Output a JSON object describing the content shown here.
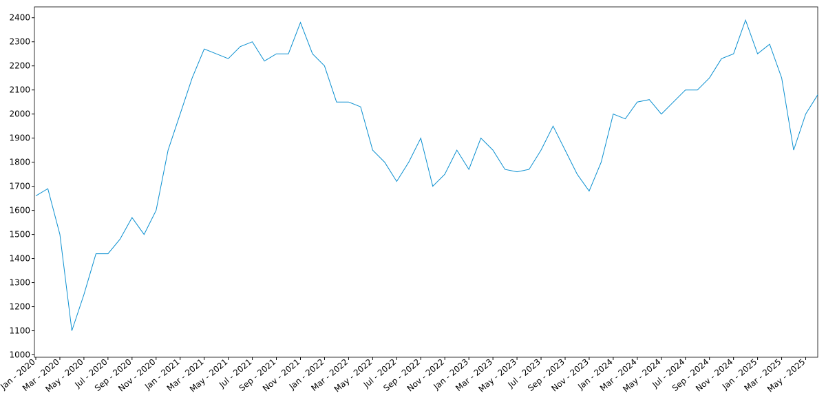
{
  "chart_data": {
    "type": "line",
    "categories": [
      "Jan - 2020",
      null,
      "Mar - 2020",
      null,
      "May - 2020",
      null,
      "Jul - 2020",
      null,
      "Sep - 2020",
      null,
      "Nov - 2020",
      null,
      "Jan - 2021",
      null,
      "Mar - 2021",
      null,
      "May - 2021",
      null,
      "Jul - 2021",
      null,
      "Sep - 2021",
      null,
      "Nov - 2021",
      null,
      "Jan - 2022",
      null,
      "Mar - 2022",
      null,
      "May - 2022",
      null,
      "Jul - 2022",
      null,
      "Sep - 2022",
      null,
      "Nov - 2022",
      null,
      "Jan - 2023",
      null,
      "Mar - 2023",
      null,
      "May - 2023",
      null,
      "Jul - 2023",
      null,
      "Sep - 2023",
      null,
      "Nov - 2023",
      null,
      "Jan - 2024",
      null,
      "Mar - 2024",
      null,
      "May - 2024",
      null,
      "Jul - 2024",
      null,
      "Sep - 2024",
      null,
      "Nov - 2024",
      null,
      "Jan - 2025",
      null,
      "Mar - 2025",
      null,
      "May - 2025",
      null
    ],
    "values": [
      1660,
      1690,
      1500,
      1100,
      1250,
      1420,
      1420,
      1480,
      1570,
      1500,
      1600,
      1850,
      2000,
      2150,
      2270,
      2250,
      2230,
      2280,
      2300,
      2220,
      2250,
      2250,
      2380,
      2250,
      2200,
      2050,
      2050,
      2030,
      1850,
      1800,
      1720,
      1800,
      1900,
      1700,
      1750,
      1850,
      1770,
      1900,
      1850,
      1770,
      1760,
      1770,
      1850,
      1950,
      1850,
      1750,
      1680,
      1800,
      2000,
      1980,
      2050,
      2060,
      2000,
      2050,
      2100,
      2100,
      2150,
      2230,
      2250,
      2390,
      2250,
      2290,
      2150,
      1850,
      2000,
      2080
    ],
    "color": "#0a8fd0",
    "ylim": [
      990,
      2445
    ],
    "yticks": [
      1000,
      1100,
      1200,
      1300,
      1400,
      1500,
      1600,
      1700,
      1800,
      1900,
      2000,
      2100,
      2200,
      2300,
      2400
    ]
  }
}
